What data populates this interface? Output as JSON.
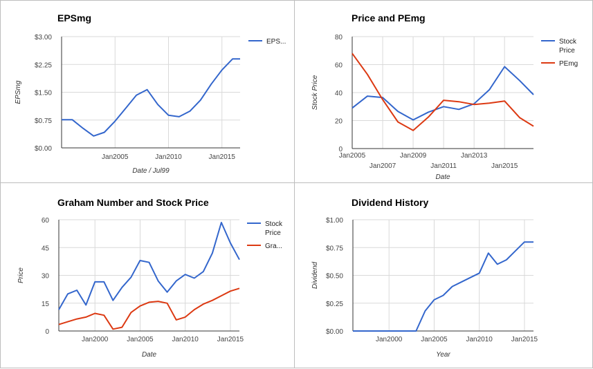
{
  "chart_data": [
    {
      "type": "line",
      "title": "EPSmg",
      "xlabel": "Date / Jul99",
      "ylabel": "EPSmg",
      "x_ticks": [
        "Jan2005",
        "Jan2010",
        "Jan2015"
      ],
      "y_ticks": [
        "$0.00",
        "$0.75",
        "$1.50",
        "$2.25",
        "$3.00"
      ],
      "ylim": [
        0,
        3
      ],
      "xlim": [
        2000,
        2016.7
      ],
      "grid": true,
      "legend": "right",
      "series": [
        {
          "name": "EPS...",
          "color": "#3366cc",
          "x": [
            2000,
            2001,
            2002,
            2003,
            2004,
            2005,
            2006,
            2007,
            2008,
            2009,
            2010,
            2011,
            2012,
            2013,
            2014,
            2015,
            2016,
            2016.7
          ],
          "y": [
            0.76,
            0.76,
            0.53,
            0.32,
            0.42,
            0.72,
            1.07,
            1.42,
            1.57,
            1.17,
            0.88,
            0.84,
            0.99,
            1.29,
            1.72,
            2.1,
            2.4,
            2.4
          ]
        }
      ]
    },
    {
      "type": "line",
      "title": "Price and PEmg",
      "xlabel": "Date",
      "ylabel": "Stock Price",
      "x_ticks": [
        "Jan2005",
        "Jan2007",
        "Jan2009",
        "Jan2011",
        "Jan2013",
        "Jan2015"
      ],
      "y_ticks": [
        "0",
        "20",
        "40",
        "60",
        "80"
      ],
      "ylim": [
        0,
        80
      ],
      "xlim": [
        2005,
        2016.9
      ],
      "grid": true,
      "legend": "right",
      "series": [
        {
          "name": "Stock Price",
          "color": "#3366cc",
          "x": [
            2005,
            2006,
            2007,
            2008,
            2009,
            2010,
            2011,
            2012,
            2013,
            2014,
            2015,
            2016,
            2016.9
          ],
          "y": [
            29,
            37.5,
            36.5,
            26.5,
            20.5,
            26,
            30,
            28,
            32,
            42,
            58.5,
            48.5,
            38.5
          ]
        },
        {
          "name": "PEmg",
          "color": "#dc3912",
          "x": [
            2005,
            2006,
            2007,
            2008,
            2009,
            2010,
            2011,
            2012,
            2013,
            2014,
            2015,
            2016,
            2016.9
          ],
          "y": [
            68,
            53,
            35,
            19,
            13,
            22.5,
            34.5,
            33.5,
            31.5,
            32.5,
            34,
            22,
            16
          ]
        }
      ]
    },
    {
      "type": "line",
      "title": "Graham Number and Stock Price",
      "xlabel": "Date",
      "ylabel": "Price",
      "x_ticks": [
        "Jan2000",
        "Jan2005",
        "Jan2010",
        "Jan2015"
      ],
      "y_ticks": [
        "0",
        "15",
        "30",
        "45",
        "60"
      ],
      "ylim": [
        0,
        60
      ],
      "xlim": [
        1996,
        2016
      ],
      "grid": true,
      "legend": "right",
      "series": [
        {
          "name": "Stock Price",
          "color": "#3366cc",
          "x": [
            1996,
            1997,
            1998,
            1999,
            2000,
            2001,
            2002,
            2003,
            2004,
            2005,
            2006,
            2007,
            2008,
            2009,
            2010,
            2011,
            2012,
            2013,
            2014,
            2015,
            2016
          ],
          "y": [
            11.5,
            20,
            22,
            14,
            26.5,
            26.5,
            16.5,
            23.5,
            29,
            38,
            37,
            27,
            21,
            27,
            30.5,
            28.5,
            32,
            42,
            58.5,
            47.5,
            38.5
          ]
        },
        {
          "name": "Gra...",
          "color": "#dc3912",
          "x": [
            1996,
            1997,
            1998,
            1999,
            2000,
            2001,
            2002,
            2003,
            2004,
            2005,
            2006,
            2007,
            2008,
            2009,
            2010,
            2011,
            2012,
            2013,
            2014,
            2015,
            2016
          ],
          "y": [
            3.5,
            5,
            6.5,
            7.5,
            9.5,
            8.5,
            1,
            2,
            10,
            13.5,
            15.5,
            16,
            15,
            6,
            7.5,
            11.5,
            14.5,
            16.5,
            19,
            21.5,
            23
          ]
        }
      ]
    },
    {
      "type": "line",
      "title": "Dividend History",
      "xlabel": "Year",
      "ylabel": "Dividend",
      "x_ticks": [
        "Jan2000",
        "Jan2005",
        "Jan2010",
        "Jan2015"
      ],
      "y_ticks": [
        "$0.00",
        "$0.25",
        "$0.50",
        "$0.75",
        "$1.00"
      ],
      "ylim": [
        0,
        1
      ],
      "xlim": [
        1996,
        2016
      ],
      "grid": true,
      "legend": "none",
      "series": [
        {
          "name": "",
          "color": "#3366cc",
          "x": [
            1996,
            1997,
            1998,
            1999,
            2000,
            2001,
            2002,
            2003,
            2004,
            2005,
            2006,
            2007,
            2008,
            2009,
            2010,
            2011,
            2012,
            2013,
            2014,
            2015,
            2016
          ],
          "y": [
            0,
            0,
            0,
            0,
            0,
            0,
            0,
            0,
            0.18,
            0.28,
            0.32,
            0.4,
            0.44,
            0.48,
            0.52,
            0.7,
            0.6,
            0.64,
            0.72,
            0.8,
            0.8
          ]
        }
      ]
    }
  ]
}
